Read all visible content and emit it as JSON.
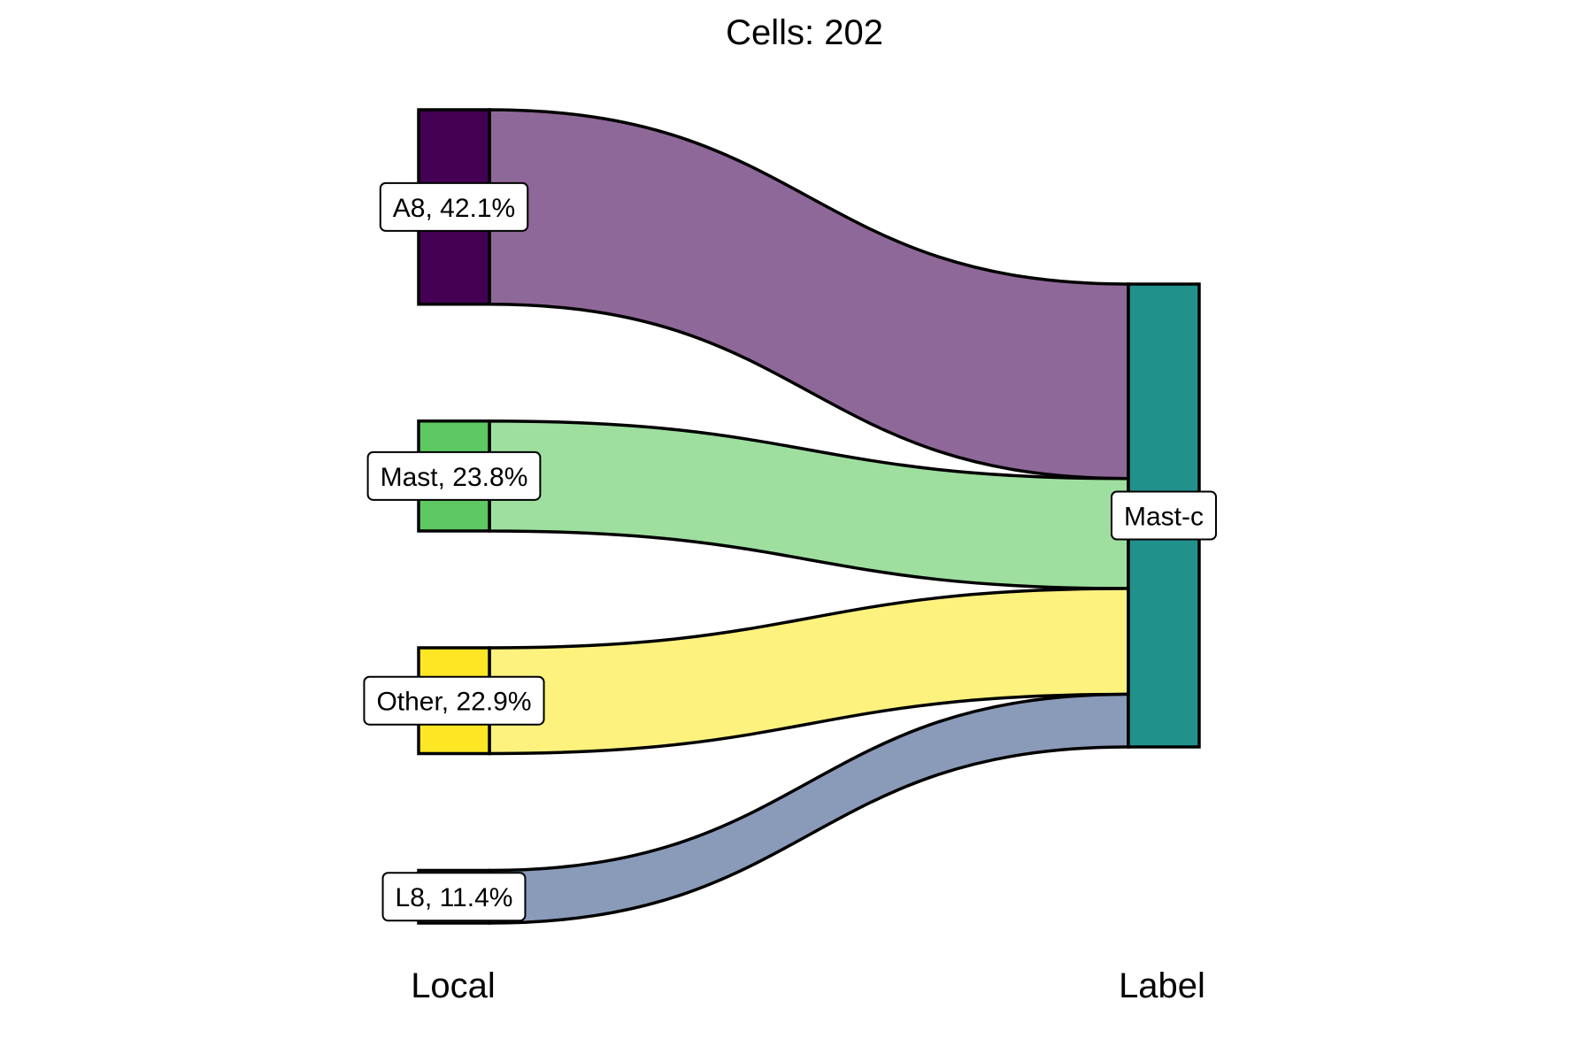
{
  "chart_data": {
    "type": "sankey",
    "title": "Cells:  202",
    "axes": [
      "Local",
      "Label"
    ],
    "left_nodes": [
      {
        "name": "A8",
        "label": "A8, 42.1%",
        "percent": 42.1,
        "color": "#440154",
        "flow_color": "#8e6898"
      },
      {
        "name": "Mast",
        "label": "Mast, 23.8%",
        "percent": 23.8,
        "color": "#5ec962",
        "flow_color": "#9edf9f"
      },
      {
        "name": "Other",
        "label": "Other, 22.9%",
        "percent": 22.9,
        "color": "#fde725",
        "flow_color": "#fdf27e"
      },
      {
        "name": "L8",
        "label": "L8, 11.4%",
        "percent": 11.4,
        "color": "#8a9bb9",
        "flow_color": "#8a9bb9"
      }
    ],
    "right_nodes": [
      {
        "name": "Mast-c",
        "label": "Mast-c",
        "percent": 100,
        "color": "#21918c"
      }
    ],
    "flows": [
      {
        "source": "A8",
        "target": "Mast-c",
        "percent": 42.1
      },
      {
        "source": "Mast",
        "target": "Mast-c",
        "percent": 23.8
      },
      {
        "source": "Other",
        "target": "Mast-c",
        "percent": 22.9
      },
      {
        "source": "L8",
        "target": "Mast-c",
        "percent": 11.4
      }
    ]
  }
}
